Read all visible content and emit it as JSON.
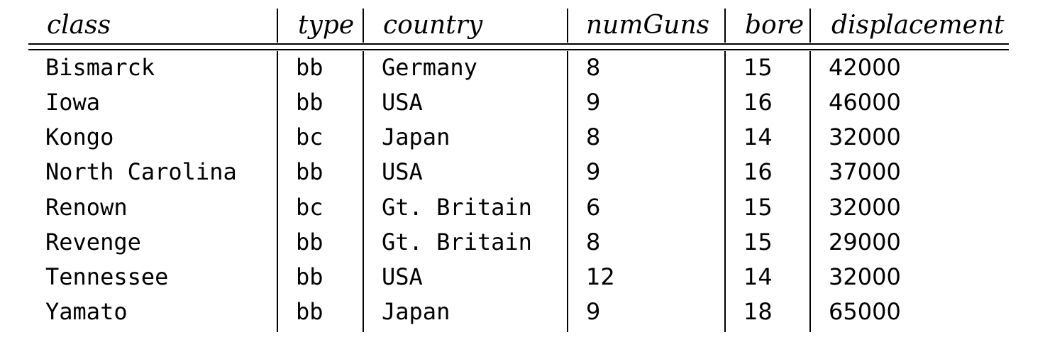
{
  "table": {
    "columns": [
      "class",
      "type",
      "country",
      "numGuns",
      "bore",
      "displacement"
    ],
    "rows": [
      {
        "class": "Bismarck",
        "type": "bb",
        "country": "Germany",
        "numGuns": "8",
        "bore": "15",
        "displacement": "42000"
      },
      {
        "class": "Iowa",
        "type": "bb",
        "country": "USA",
        "numGuns": "9",
        "bore": "16",
        "displacement": "46000"
      },
      {
        "class": "Kongo",
        "type": "bc",
        "country": "Japan",
        "numGuns": "8",
        "bore": "14",
        "displacement": "32000"
      },
      {
        "class": "North Carolina",
        "type": "bb",
        "country": "USA",
        "numGuns": "9",
        "bore": "16",
        "displacement": "37000"
      },
      {
        "class": "Renown",
        "type": "bc",
        "country": "Gt. Britain",
        "numGuns": "6",
        "bore": "15",
        "displacement": "32000"
      },
      {
        "class": "Revenge",
        "type": "bb",
        "country": "Gt. Britain",
        "numGuns": "8",
        "bore": "15",
        "displacement": "29000"
      },
      {
        "class": "Tennessee",
        "type": "bb",
        "country": "USA",
        "numGuns": "12",
        "bore": "14",
        "displacement": "32000"
      },
      {
        "class": "Yamato",
        "type": "bb",
        "country": "Japan",
        "numGuns": "9",
        "bore": "18",
        "displacement": "65000"
      }
    ]
  }
}
